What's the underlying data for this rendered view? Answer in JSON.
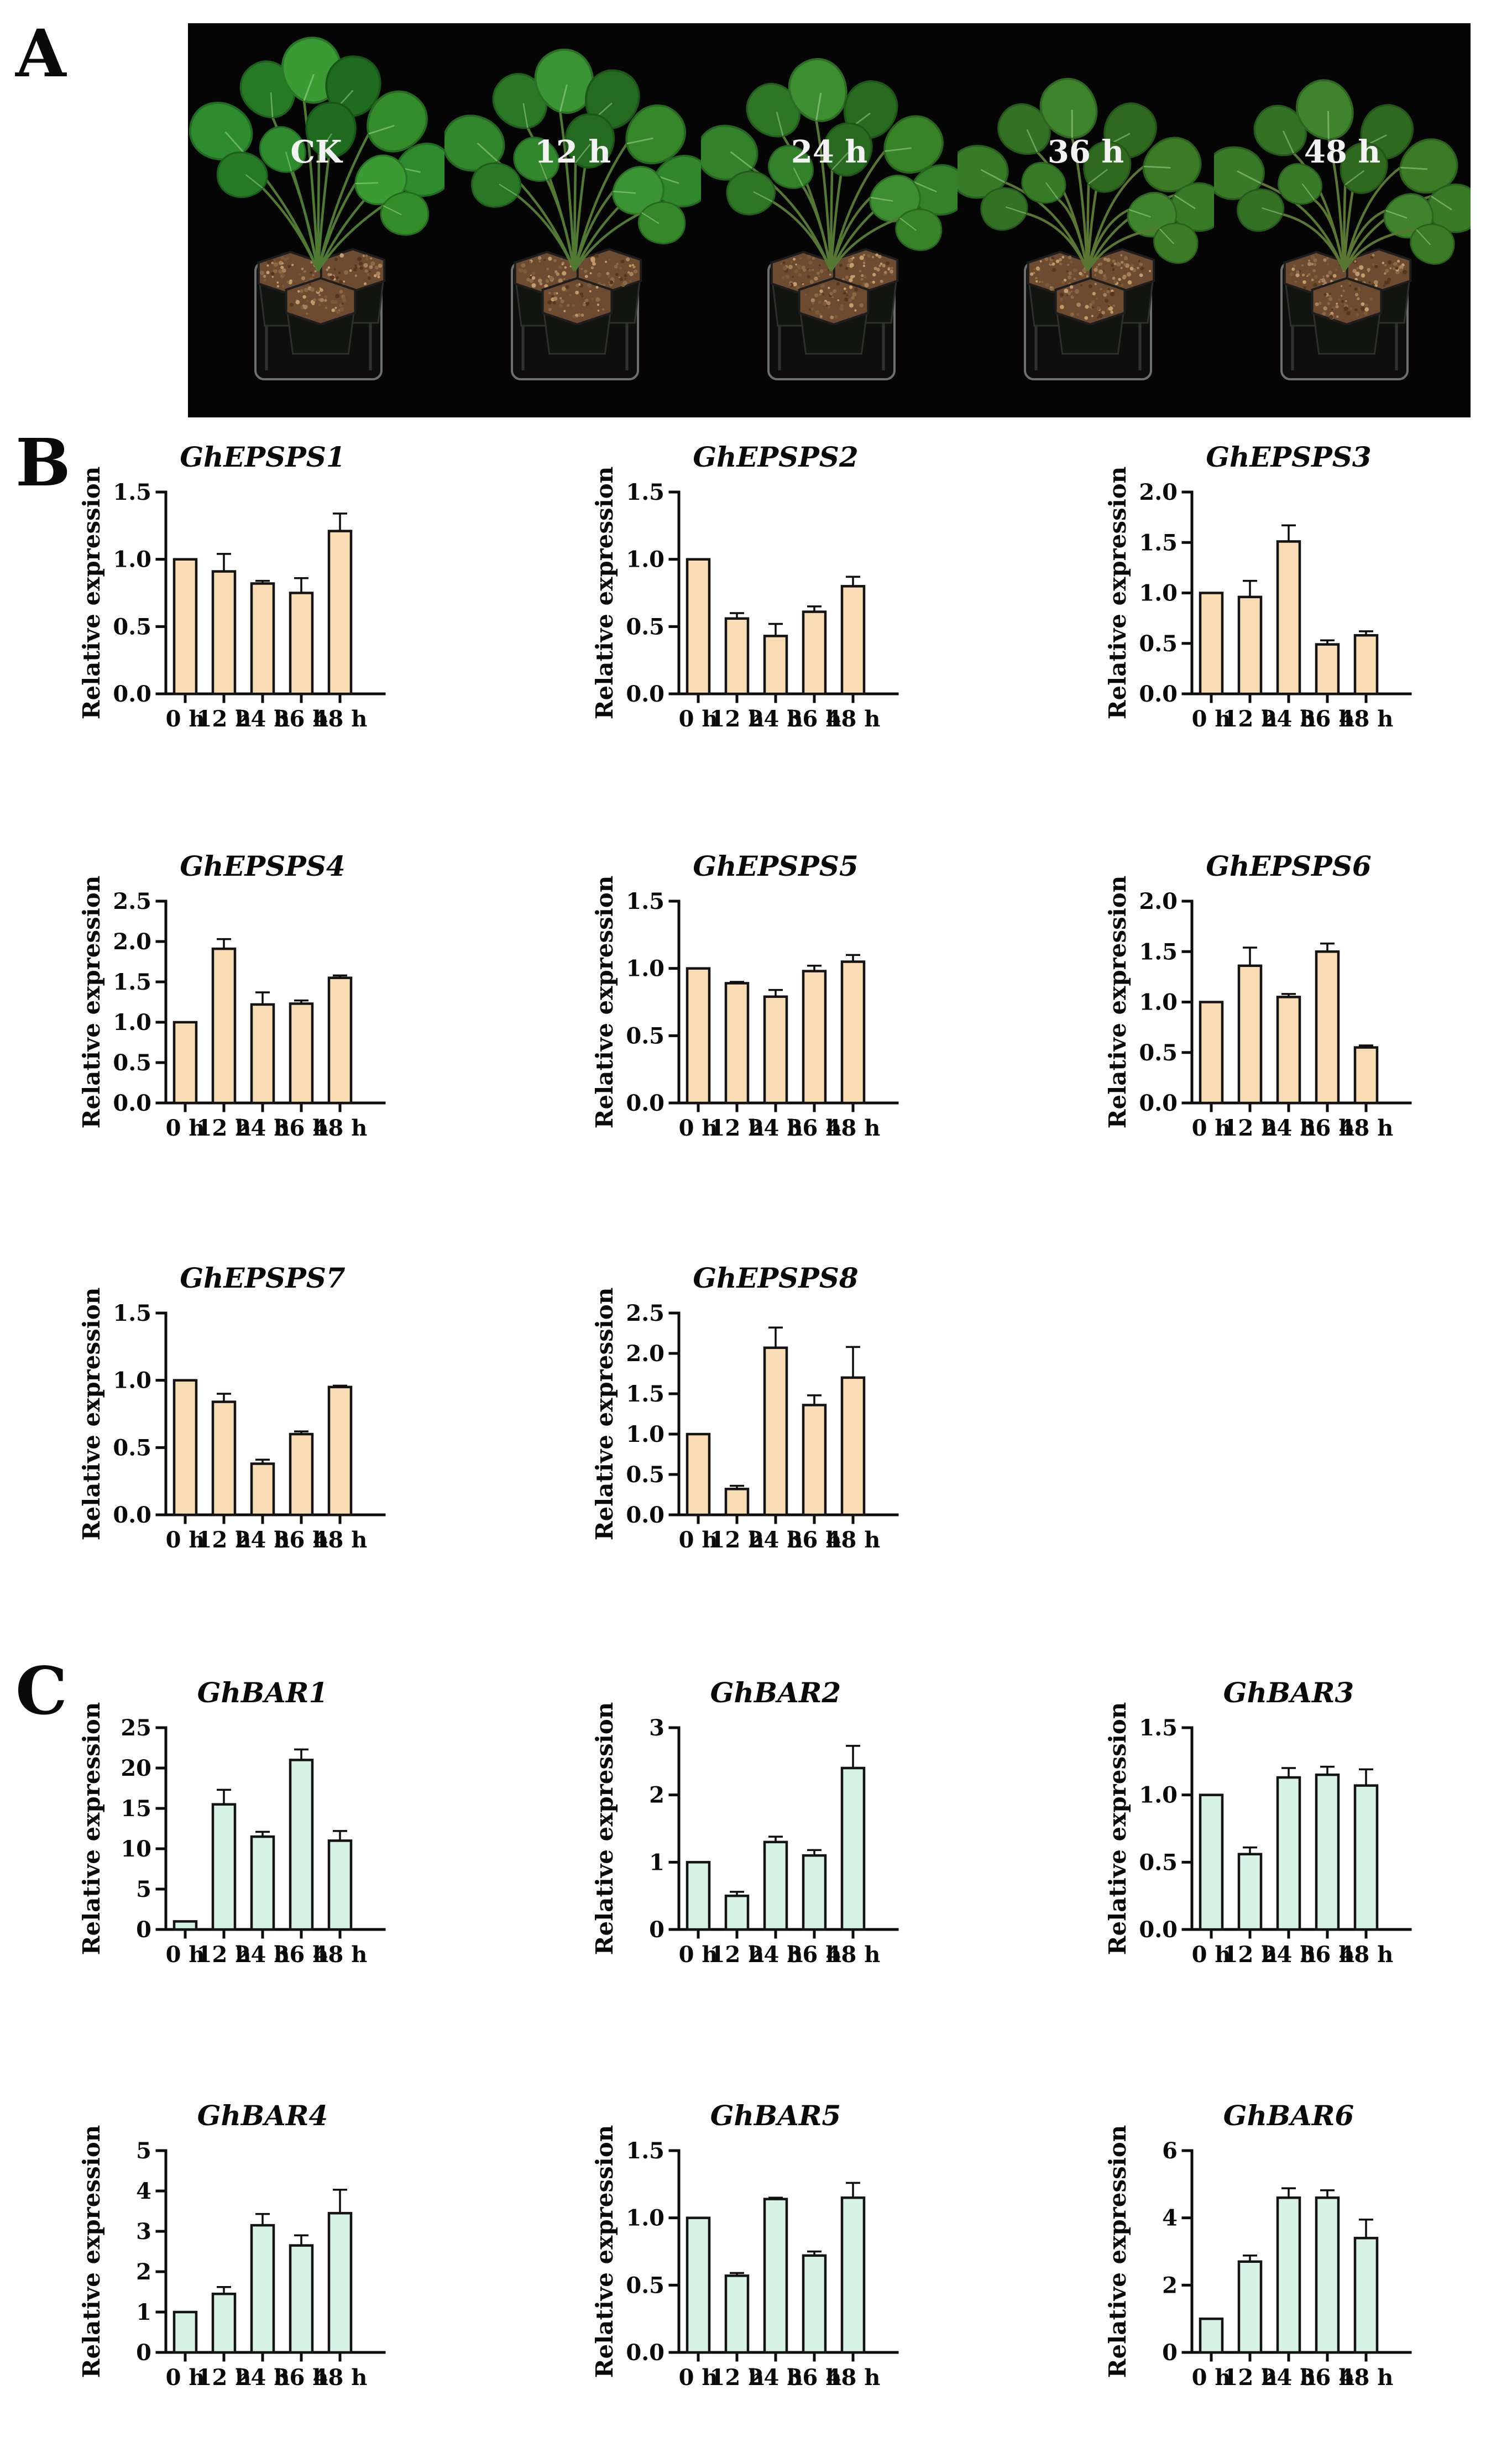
{
  "figure_labels": {
    "a": "A",
    "b": "B",
    "c": "C"
  },
  "panelA": {
    "labels": [
      "CK",
      "12 h",
      "24 h",
      "36 h",
      "48 h"
    ],
    "background": "#050505",
    "label_color": "#f2f2f2"
  },
  "colors": {
    "panelB_fill": "#FADCB4",
    "panelC_fill": "#D5F2E2",
    "outline": "#141414",
    "axis": "#0d0d0d"
  },
  "chart_data": [
    {
      "panel": "B",
      "type": "bar",
      "title": "GhEPSPS1",
      "ylabel": "Relative expression",
      "categories": [
        "0 h",
        "12 h",
        "24 h",
        "36 h",
        "48 h"
      ],
      "values": [
        1.0,
        0.91,
        0.82,
        0.75,
        1.21
      ],
      "errors": [
        0,
        0.13,
        0.02,
        0.11,
        0.13
      ],
      "ylim": [
        0,
        1.5
      ],
      "yticks": [
        "0.0",
        "0.5",
        "1.0",
        "1.5"
      ],
      "bar_color": "#FADCB4"
    },
    {
      "panel": "B",
      "type": "bar",
      "title": "GhEPSPS2",
      "ylabel": "Relative expression",
      "categories": [
        "0 h",
        "12 h",
        "24 h",
        "36 h",
        "48 h"
      ],
      "values": [
        1.0,
        0.56,
        0.43,
        0.61,
        0.8
      ],
      "errors": [
        0,
        0.04,
        0.09,
        0.04,
        0.07
      ],
      "ylim": [
        0,
        1.5
      ],
      "yticks": [
        "0.0",
        "0.5",
        "1.0",
        "1.5"
      ],
      "bar_color": "#FADCB4"
    },
    {
      "panel": "B",
      "type": "bar",
      "title": "GhEPSPS3",
      "ylabel": "Relative expression",
      "categories": [
        "0 h",
        "12 h",
        "24 h",
        "36 h",
        "48 h"
      ],
      "values": [
        1.0,
        0.96,
        1.51,
        0.49,
        0.58
      ],
      "errors": [
        0,
        0.16,
        0.16,
        0.04,
        0.04
      ],
      "ylim": [
        0,
        2.0
      ],
      "yticks": [
        "0.0",
        "0.5",
        "1.0",
        "1.5",
        "2.0"
      ],
      "bar_color": "#FADCB4"
    },
    {
      "panel": "B",
      "type": "bar",
      "title": "GhEPSPS4",
      "ylabel": "Relative expression",
      "categories": [
        "0 h",
        "12 h",
        "24 h",
        "36 h",
        "48 h"
      ],
      "values": [
        1.0,
        1.91,
        1.22,
        1.23,
        1.55
      ],
      "errors": [
        0,
        0.12,
        0.15,
        0.04,
        0.03
      ],
      "ylim": [
        0,
        2.5
      ],
      "yticks": [
        "0.0",
        "0.5",
        "1.0",
        "1.5",
        "2.0",
        "2.5"
      ],
      "bar_color": "#FADCB4"
    },
    {
      "panel": "B",
      "type": "bar",
      "title": "GhEPSPS5",
      "ylabel": "Relative expression",
      "categories": [
        "0 h",
        "12 h",
        "24 h",
        "36 h",
        "48 h"
      ],
      "values": [
        1.0,
        0.89,
        0.79,
        0.98,
        1.05
      ],
      "errors": [
        0,
        0.01,
        0.05,
        0.04,
        0.05
      ],
      "ylim": [
        0,
        1.5
      ],
      "yticks": [
        "0.0",
        "0.5",
        "1.0",
        "1.5"
      ],
      "bar_color": "#FADCB4"
    },
    {
      "panel": "B",
      "type": "bar",
      "title": "GhEPSPS6",
      "ylabel": "Relative expression",
      "categories": [
        "0 h",
        "12 h",
        "24 h",
        "36 h",
        "48 h"
      ],
      "values": [
        1.0,
        1.36,
        1.05,
        1.5,
        0.55
      ],
      "errors": [
        0,
        0.18,
        0.03,
        0.08,
        0.02
      ],
      "ylim": [
        0,
        2.0
      ],
      "yticks": [
        "0.0",
        "0.5",
        "1.0",
        "1.5",
        "2.0"
      ],
      "bar_color": "#FADCB4"
    },
    {
      "panel": "B",
      "type": "bar",
      "title": "GhEPSPS7",
      "ylabel": "Relative expression",
      "categories": [
        "0 h",
        "12 h",
        "24 h",
        "36 h",
        "48 h"
      ],
      "values": [
        1.0,
        0.84,
        0.38,
        0.6,
        0.95
      ],
      "errors": [
        0,
        0.06,
        0.03,
        0.02,
        0.01
      ],
      "ylim": [
        0,
        1.5
      ],
      "yticks": [
        "0.0",
        "0.5",
        "1.0",
        "1.5"
      ],
      "bar_color": "#FADCB4"
    },
    {
      "panel": "B",
      "type": "bar",
      "title": "GhEPSPS8",
      "ylabel": "Relative expression",
      "categories": [
        "0 h",
        "12 h",
        "24 h",
        "36 h",
        "48 h"
      ],
      "values": [
        1.0,
        0.32,
        2.07,
        1.36,
        1.7
      ],
      "errors": [
        0,
        0.04,
        0.25,
        0.12,
        0.38
      ],
      "ylim": [
        0,
        2.5
      ],
      "yticks": [
        "0.0",
        "0.5",
        "1.0",
        "1.5",
        "2.0",
        "2.5"
      ],
      "bar_color": "#FADCB4"
    },
    {
      "panel": "C",
      "type": "bar",
      "title": "GhBAR1",
      "ylabel": "Relative expression",
      "categories": [
        "0 h",
        "12 h",
        "24 h",
        "36 h",
        "48 h"
      ],
      "values": [
        1.0,
        15.5,
        11.5,
        21.0,
        11.0
      ],
      "errors": [
        0,
        1.8,
        0.6,
        1.3,
        1.2
      ],
      "ylim": [
        0,
        25
      ],
      "yticks": [
        "0",
        "5",
        "10",
        "15",
        "20",
        "25"
      ],
      "bar_color": "#D5F2E2"
    },
    {
      "panel": "C",
      "type": "bar",
      "title": "GhBAR2",
      "ylabel": "Relative expression",
      "categories": [
        "0 h",
        "12 h",
        "24 h",
        "36 h",
        "48 h"
      ],
      "values": [
        1.0,
        0.5,
        1.3,
        1.1,
        2.4
      ],
      "errors": [
        0,
        0.06,
        0.08,
        0.08,
        0.33
      ],
      "ylim": [
        0,
        3
      ],
      "yticks": [
        "0",
        "1",
        "2",
        "3"
      ],
      "bar_color": "#D5F2E2"
    },
    {
      "panel": "C",
      "type": "bar",
      "title": "GhBAR3",
      "ylabel": "Relative expression",
      "categories": [
        "0 h",
        "12 h",
        "24 h",
        "36 h",
        "48 h"
      ],
      "values": [
        1.0,
        0.56,
        1.13,
        1.15,
        1.07
      ],
      "errors": [
        0,
        0.05,
        0.07,
        0.06,
        0.12
      ],
      "ylim": [
        0,
        1.5
      ],
      "yticks": [
        "0.0",
        "0.5",
        "1.0",
        "1.5"
      ],
      "bar_color": "#D5F2E2"
    },
    {
      "panel": "C",
      "type": "bar",
      "title": "GhBAR4",
      "ylabel": "Relative expression",
      "categories": [
        "0 h",
        "12 h",
        "24 h",
        "36 h",
        "48 h"
      ],
      "values": [
        1.0,
        1.45,
        3.15,
        2.65,
        3.45
      ],
      "errors": [
        0,
        0.17,
        0.28,
        0.25,
        0.58
      ],
      "ylim": [
        0,
        5
      ],
      "yticks": [
        "0",
        "1",
        "2",
        "3",
        "4",
        "5"
      ],
      "bar_color": "#D5F2E2"
    },
    {
      "panel": "C",
      "type": "bar",
      "title": "GhBAR5",
      "ylabel": "Relative expression",
      "categories": [
        "0 h",
        "12 h",
        "24 h",
        "36 h",
        "48 h"
      ],
      "values": [
        1.0,
        0.57,
        1.14,
        0.72,
        1.15
      ],
      "errors": [
        0,
        0.02,
        0.01,
        0.03,
        0.11
      ],
      "ylim": [
        0,
        1.5
      ],
      "yticks": [
        "0.0",
        "0.5",
        "1.0",
        "1.5"
      ],
      "bar_color": "#D5F2E2"
    },
    {
      "panel": "C",
      "type": "bar",
      "title": "GhBAR6",
      "ylabel": "Relative expression",
      "categories": [
        "0 h",
        "12 h",
        "24 h",
        "36 h",
        "48 h"
      ],
      "values": [
        1.0,
        2.7,
        4.6,
        4.6,
        3.4
      ],
      "errors": [
        0,
        0.18,
        0.28,
        0.22,
        0.55
      ],
      "ylim": [
        0,
        6
      ],
      "yticks": [
        "0",
        "2",
        "4",
        "6"
      ],
      "bar_color": "#D5F2E2"
    }
  ]
}
